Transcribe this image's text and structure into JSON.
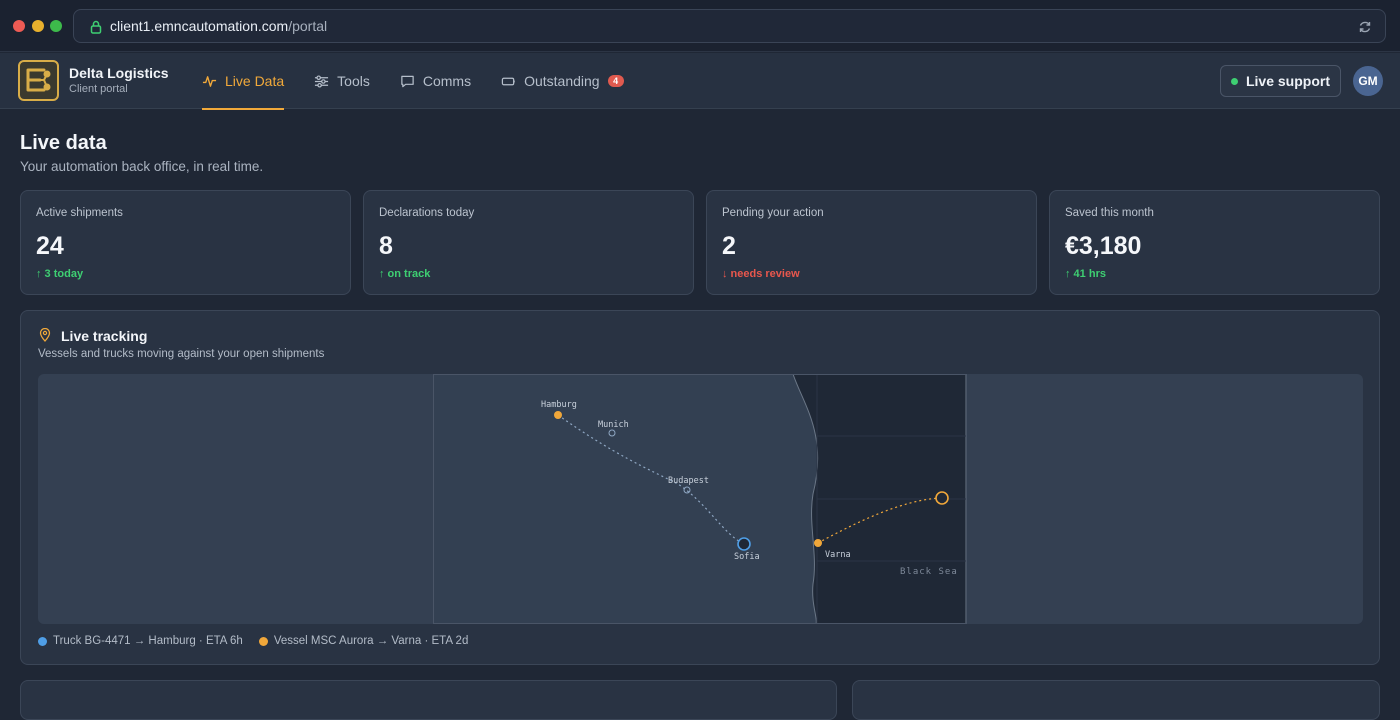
{
  "browser": {
    "url_host": "client1.emncautomation.com",
    "url_path": "/portal"
  },
  "brand": {
    "name": "Delta Logistics",
    "subtitle": "Client portal"
  },
  "nav": {
    "items": [
      {
        "label": "Live Data",
        "icon": "activity-icon",
        "active": true
      },
      {
        "label": "Tools",
        "icon": "sliders-icon",
        "active": false
      },
      {
        "label": "Comms",
        "icon": "chat-icon",
        "active": false
      },
      {
        "label": "Outstanding",
        "icon": "tag-icon",
        "active": false,
        "badge": "4"
      }
    ]
  },
  "header": {
    "support_label": "Live support",
    "avatar_initials": "GM"
  },
  "page": {
    "title": "Live data",
    "subtitle": "Your automation back office, in real time."
  },
  "stats": [
    {
      "label": "Active shipments",
      "value": "24",
      "delta": "↑ 3 today",
      "trend": "up"
    },
    {
      "label": "Declarations today",
      "value": "8",
      "delta": "↑ on track",
      "trend": "up"
    },
    {
      "label": "Pending your action",
      "value": "2",
      "delta": "↓ needs review",
      "trend": "down"
    },
    {
      "label": "Saved this month",
      "value": "€3,180",
      "delta": "↑ 41 hrs",
      "trend": "up"
    }
  ],
  "tracking": {
    "title": "Live tracking",
    "subtitle": "Vessels and trucks moving against your open shipments",
    "map": {
      "cities": {
        "hamburg": "Hamburg",
        "munich": "Munich",
        "budapest": "Budapest",
        "sofia": "Sofia",
        "varna": "Varna"
      },
      "sea_label": "Black Sea"
    },
    "legend": [
      {
        "label": "Truck BG-4471 → Hamburg · ETA 6h",
        "color": "#4f9ee6"
      },
      {
        "label": "Vessel MSC Aurora → Varna · ETA 2d",
        "color": "#f0a73a"
      }
    ]
  },
  "colors": {
    "accent": "#f1a93a",
    "positive": "#3ecf72",
    "negative": "#e8574d",
    "truck": "#4f9ee6"
  }
}
